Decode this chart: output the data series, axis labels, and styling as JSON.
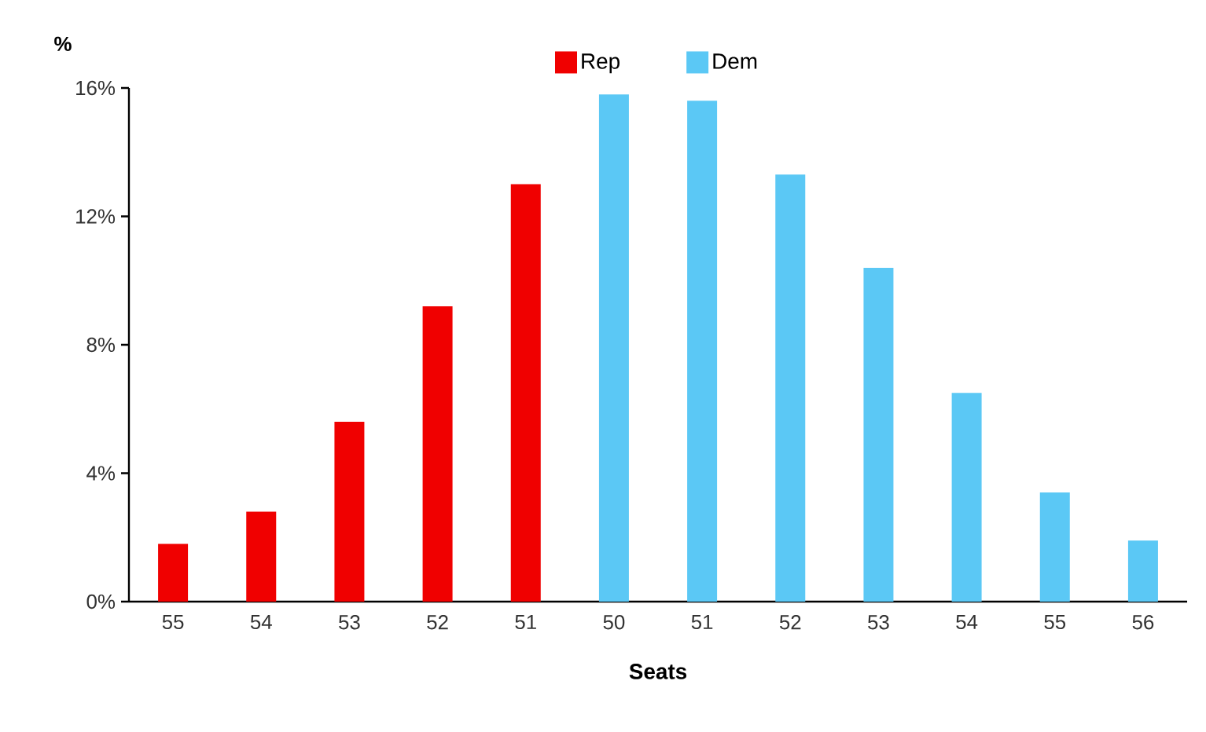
{
  "chart_data": {
    "type": "bar",
    "ylabel": "%",
    "xlabel": "Seats",
    "categories": [
      "55",
      "54",
      "53",
      "52",
      "51",
      "50",
      "51",
      "52",
      "53",
      "54",
      "55",
      "56"
    ],
    "series": [
      {
        "name": "Rep",
        "color": "#f00000",
        "values": [
          1.8,
          2.8,
          5.6,
          9.2,
          13.0,
          null,
          null,
          null,
          null,
          null,
          null,
          null
        ]
      },
      {
        "name": "Dem",
        "color": "#5bc8f5",
        "values": [
          null,
          null,
          null,
          null,
          null,
          15.8,
          15.6,
          13.3,
          10.4,
          6.5,
          3.4,
          1.9
        ]
      }
    ],
    "ylim": [
      0,
      16
    ],
    "yticks": [
      {
        "value": 0,
        "label": "0%"
      },
      {
        "value": 4,
        "label": "4%"
      },
      {
        "value": 8,
        "label": "8%"
      },
      {
        "value": 12,
        "label": "12%"
      },
      {
        "value": 16,
        "label": "16%"
      }
    ],
    "grid": false,
    "legend": "top"
  }
}
